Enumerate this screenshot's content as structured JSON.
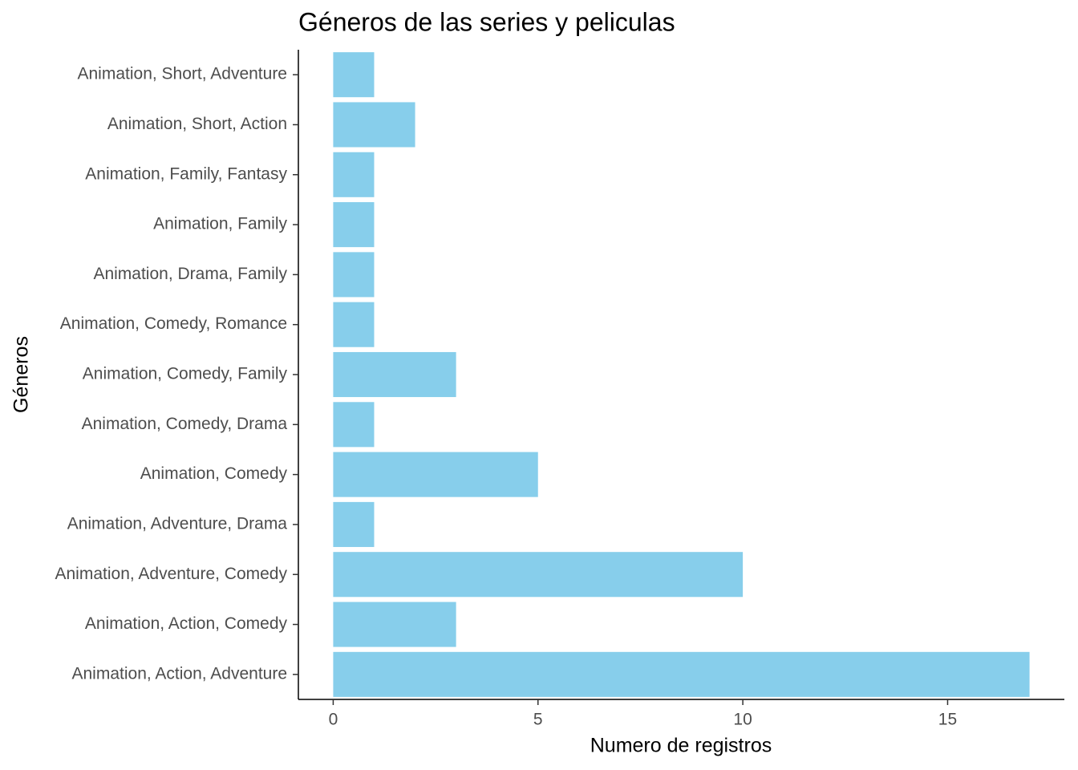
{
  "chart_data": {
    "type": "bar",
    "orientation": "horizontal",
    "title": "Géneros de las series y peliculas",
    "x_label": "Numero de registros",
    "y_label": "Géneros",
    "categories": [
      "Animation, Action, Adventure",
      "Animation, Action, Comedy",
      "Animation, Adventure, Comedy",
      "Animation, Adventure, Drama",
      "Animation, Comedy",
      "Animation, Comedy, Drama",
      "Animation, Comedy, Family",
      "Animation, Comedy, Romance",
      "Animation, Drama, Family",
      "Animation, Family",
      "Animation, Family, Fantasy",
      "Animation, Short, Action",
      "Animation, Short, Adventure"
    ],
    "values": [
      17,
      3,
      10,
      1,
      5,
      1,
      3,
      1,
      1,
      1,
      1,
      2,
      1
    ],
    "color": "#87ceeb",
    "xlim": [
      -0.85,
      17.85
    ],
    "xticks": [
      0,
      5,
      10,
      15
    ],
    "grid": false
  }
}
